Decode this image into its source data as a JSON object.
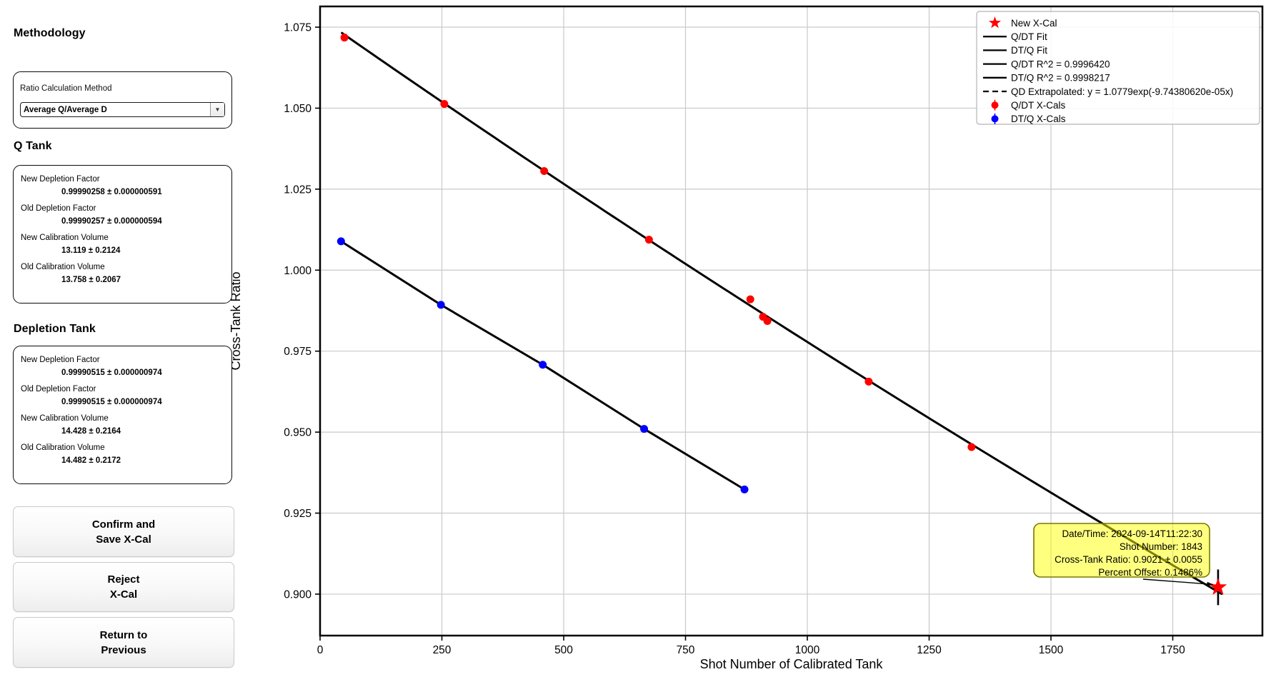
{
  "sidebar": {
    "methodology_heading": "Methodology",
    "method_box": {
      "label": "Ratio Calculation Method",
      "select_value": "Average Q/Average D"
    },
    "q_tank": {
      "heading": "Q Tank",
      "fields": [
        {
          "label": "New Depletion Factor",
          "value": "0.99990258 ± 0.000000591"
        },
        {
          "label": "Old Depletion Factor",
          "value": "0.99990257 ± 0.000000594"
        },
        {
          "label": "New Calibration Volume",
          "value": "13.119 ± 0.2124"
        },
        {
          "label": "Old Calibration Volume",
          "value": "13.758 ± 0.2067"
        }
      ]
    },
    "depletion_tank": {
      "heading": "Depletion Tank",
      "fields": [
        {
          "label": "New Depletion Factor",
          "value": "0.99990515 ± 0.000000974"
        },
        {
          "label": "Old Depletion Factor",
          "value": "0.99990515 ± 0.000000974"
        },
        {
          "label": "New Calibration Volume",
          "value": "14.428 ± 0.2164"
        },
        {
          "label": "Old Calibration Volume",
          "value": "14.482 ± 0.2172"
        }
      ]
    },
    "buttons": [
      {
        "id": "confirm",
        "lines": [
          "Confirm and",
          "Save X-Cal"
        ]
      },
      {
        "id": "reject",
        "lines": [
          "Reject",
          "X-Cal"
        ]
      },
      {
        "id": "return",
        "lines": [
          "Return to",
          "Previous"
        ]
      }
    ]
  },
  "chart_data": {
    "type": "scatter",
    "title": "",
    "xlabel": "Shot Number of Calibrated Tank",
    "ylabel": "Cross-Tank Ratio",
    "xlim": [
      0,
      1934
    ],
    "ylim": [
      0.8872,
      1.0814
    ],
    "x_ticks": [
      0,
      250,
      500,
      750,
      1000,
      1250,
      1500,
      1750
    ],
    "y_ticks": [
      0.9,
      0.925,
      0.95,
      0.975,
      1.0,
      1.025,
      1.05,
      1.075
    ],
    "grid": true,
    "grid_color": "#c9c9c9",
    "legend_position": "upper right",
    "series": [
      {
        "name": "Q/DT Fit",
        "type": "exp_fit",
        "color": "#000000",
        "a": 1.0779,
        "b": -9.7438062e-05,
        "x_range": [
          45,
          1850
        ],
        "r_squared": 0.999642
      },
      {
        "name": "DT/Q Fit",
        "type": "line",
        "color": "#000000",
        "points": [
          [
            43,
            1.0089
          ],
          [
            248,
            0.9893
          ],
          [
            457,
            0.9708
          ],
          [
            665,
            0.951
          ],
          [
            871,
            0.9323
          ]
        ],
        "r_squared": 0.9998217
      },
      {
        "name": "Q/DT X-Cals",
        "type": "scatter",
        "color": "#ff0000",
        "points": [
          [
            50,
            1.0718
          ],
          [
            255,
            1.0513
          ],
          [
            460,
            1.0306
          ],
          [
            675,
            1.0094
          ],
          [
            883,
            0.991
          ],
          [
            909,
            0.9856
          ],
          [
            918,
            0.9843
          ],
          [
            1126,
            0.9656
          ],
          [
            1337,
            0.9454
          ]
        ]
      },
      {
        "name": "DT/Q X-Cals",
        "type": "scatter",
        "color": "#0000ff",
        "points": [
          [
            43,
            1.0089
          ],
          [
            248,
            0.9893
          ],
          [
            457,
            0.9708
          ],
          [
            665,
            0.951
          ],
          [
            871,
            0.9323
          ]
        ]
      }
    ],
    "new_xcal": {
      "name": "New X-Cal",
      "x": 1843,
      "y": 0.9021,
      "err": 0.0055,
      "color": "#ff0000"
    },
    "legend": [
      {
        "glyph": "star",
        "color": "#ff0000",
        "label": "New X-Cal"
      },
      {
        "glyph": "line",
        "color": "#000000",
        "label": "Q/DT Fit"
      },
      {
        "glyph": "line",
        "color": "#000000",
        "label": "DT/Q Fit"
      },
      {
        "glyph": "line",
        "color": "#000000",
        "label": "Q/DT R^2 = 0.9996420"
      },
      {
        "glyph": "line",
        "color": "#000000",
        "label": "DT/Q R^2 = 0.9998217"
      },
      {
        "glyph": "dashed",
        "color": "#000000",
        "label": "QD Extrapolated: y = 1.0779exp(-9.74380620e-05x)"
      },
      {
        "glyph": "errdot",
        "color": "#ff0000",
        "label": "Q/DT X-Cals"
      },
      {
        "glyph": "errdot",
        "color": "#0000ff",
        "label": "DT/Q X-Cals"
      }
    ],
    "annotation": {
      "lines": [
        "Date/Time: 2024-09-14T11:22:30",
        "Shot Number: 1843",
        "Cross-Tank Ratio: 0.9021 ± 0.0055",
        "Percent Offset: 0.1486%"
      ],
      "fill": "#ffff00",
      "border": "#787800"
    }
  }
}
